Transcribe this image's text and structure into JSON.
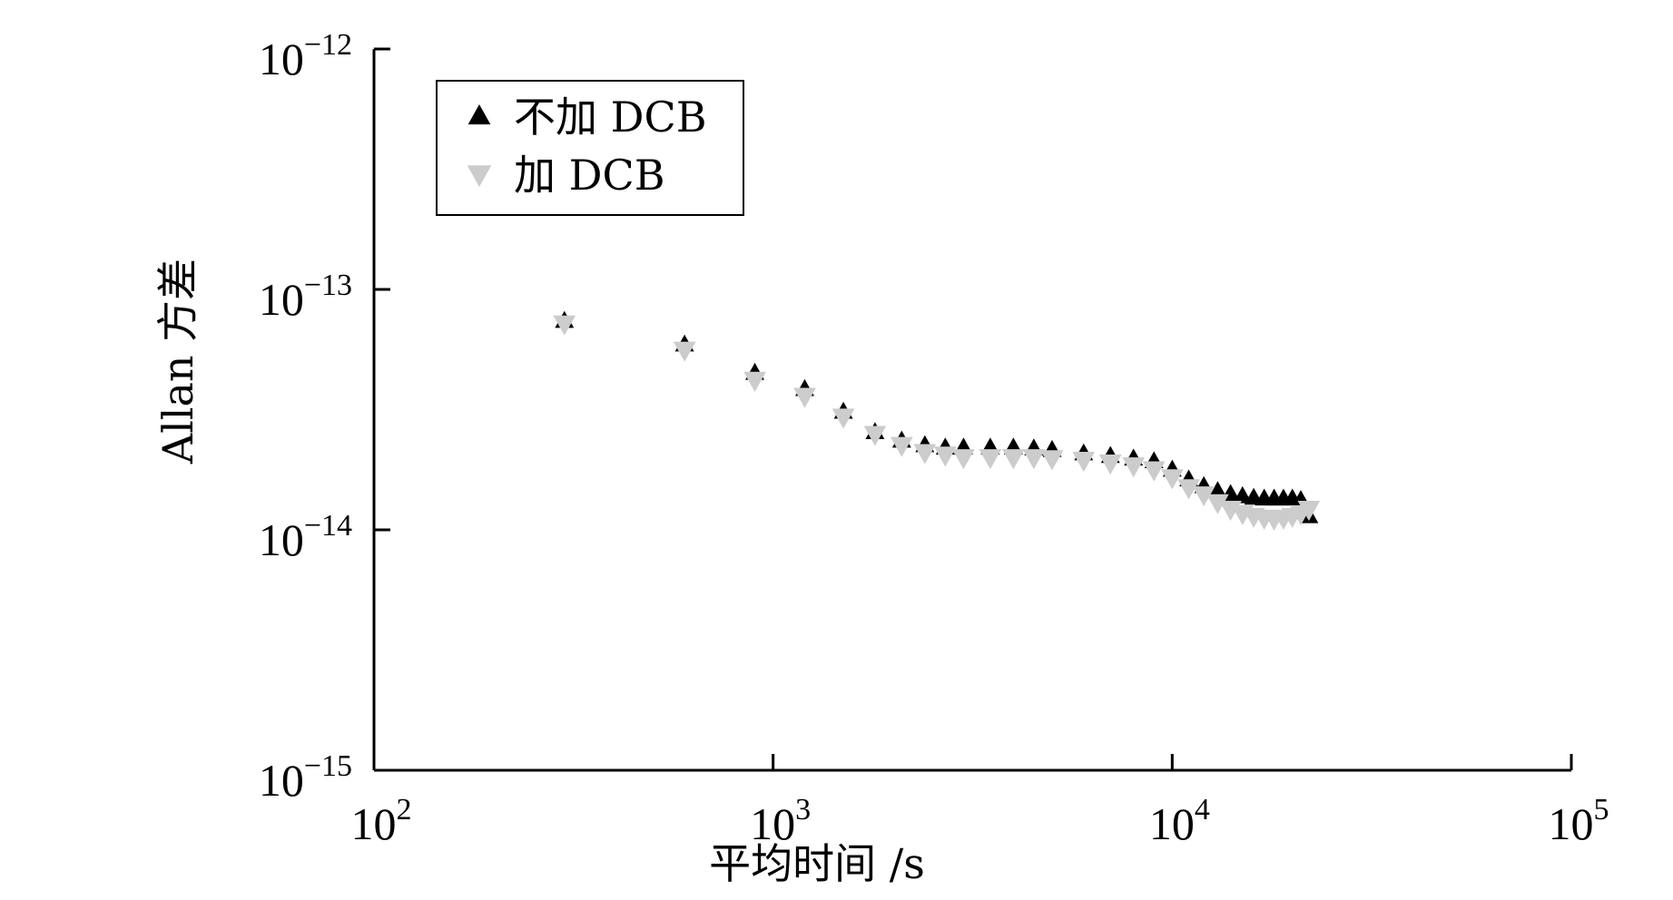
{
  "chart_data": {
    "type": "scatter",
    "xlabel": "平均时间 /s",
    "ylabel": "Allan 方差",
    "x_scale": "log",
    "y_scale": "log",
    "xlim": [
      100,
      100000
    ],
    "ylim": [
      1e-15,
      1e-12
    ],
    "x_ticks": [
      {
        "value": 100,
        "base": "10",
        "exp": "2"
      },
      {
        "value": 1000,
        "base": "10",
        "exp": "3"
      },
      {
        "value": 10000,
        "base": "10",
        "exp": "4"
      },
      {
        "value": 100000,
        "base": "10",
        "exp": "5"
      }
    ],
    "y_ticks": [
      {
        "value": 1e-12,
        "base": "10",
        "exp": "−12"
      },
      {
        "value": 1e-13,
        "base": "10",
        "exp": "−13"
      },
      {
        "value": 1e-14,
        "base": "10",
        "exp": "−14"
      },
      {
        "value": 1e-15,
        "base": "10",
        "exp": "−15"
      }
    ],
    "grid": false,
    "legend_position": "top-left",
    "series": [
      {
        "name": "不加 DCB",
        "marker": "triangle-up",
        "color": "#000000",
        "x": [
          300,
          600,
          900,
          1200,
          1500,
          1800,
          2100,
          2400,
          2700,
          3000,
          3500,
          4000,
          4500,
          5000,
          6000,
          7000,
          8000,
          9000,
          10000,
          11000,
          12000,
          13000,
          14000,
          15000,
          16000,
          17000,
          18000,
          19000,
          20000,
          21000,
          22000
        ],
        "y": [
          7.4e-14,
          5.9e-14,
          4.5e-14,
          3.85e-14,
          3.1e-14,
          2.55e-14,
          2.35e-14,
          2.25e-14,
          2.2e-14,
          2.2e-14,
          2.2e-14,
          2.2e-14,
          2.18e-14,
          2.15e-14,
          2.08e-14,
          2.03e-14,
          1.98e-14,
          1.93e-14,
          1.78e-14,
          1.62e-14,
          1.52e-14,
          1.45e-14,
          1.41e-14,
          1.38e-14,
          1.36e-14,
          1.35e-14,
          1.35e-14,
          1.35e-14,
          1.35e-14,
          1.33e-14,
          1.14e-14
        ]
      },
      {
        "name": "加 DCB",
        "marker": "triangle-down",
        "color": "#cccccc",
        "x": [
          300,
          600,
          900,
          1200,
          1500,
          1800,
          2100,
          2400,
          2700,
          3000,
          3500,
          4000,
          4500,
          5000,
          6000,
          7000,
          8000,
          9000,
          10000,
          11000,
          12000,
          13000,
          14000,
          15000,
          16000,
          17000,
          18000,
          19000,
          20000,
          21000,
          22000
        ],
        "y": [
          7.2e-14,
          5.6e-14,
          4.2e-14,
          3.6e-14,
          2.95e-14,
          2.5e-14,
          2.25e-14,
          2.1e-14,
          2.05e-14,
          2e-14,
          2e-14,
          2e-14,
          2e-14,
          1.98e-14,
          1.95e-14,
          1.9e-14,
          1.85e-14,
          1.78e-14,
          1.65e-14,
          1.5e-14,
          1.4e-14,
          1.3e-14,
          1.22e-14,
          1.17e-14,
          1.14e-14,
          1.12e-14,
          1.11e-14,
          1.12e-14,
          1.14e-14,
          1.17e-14,
          1.22e-14
        ]
      }
    ]
  }
}
